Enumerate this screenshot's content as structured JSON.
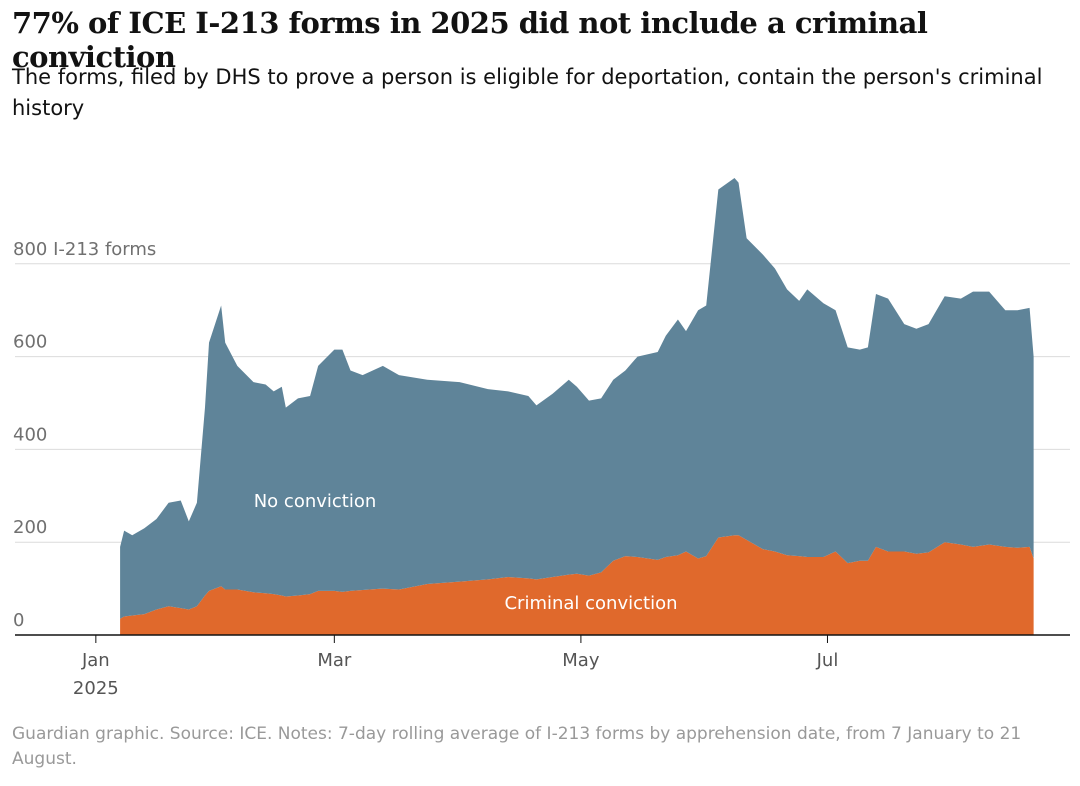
{
  "chart_data": {
    "type": "stacked_area",
    "title": "77% of ICE I-213 forms in 2025 did not include a criminal conviction",
    "subtitle": "The forms, filed by DHS to prove a person is eligible for deportation, contain the person's criminal history",
    "footer": "Guardian graphic. Source: ICE. Notes: 7-day rolling average of I-213 forms by apprehension date, from 7 January to 21 August.",
    "x": [
      6,
      7,
      9,
      12,
      15,
      18,
      21,
      23,
      25,
      27,
      28,
      31,
      32,
      35,
      39,
      42,
      44,
      46,
      47,
      50,
      53,
      55,
      59,
      61,
      63,
      66,
      71,
      75,
      82,
      90,
      97,
      102,
      107,
      109,
      113,
      117,
      119,
      122,
      125,
      128,
      131,
      134,
      139,
      141,
      144,
      146,
      149,
      151,
      154,
      158,
      159,
      161,
      165,
      168,
      171,
      174,
      176,
      180,
      183,
      186,
      189,
      191,
      193,
      196,
      200,
      203,
      206,
      210,
      214,
      217,
      221,
      225,
      228,
      231,
      232
    ],
    "xlim": [
      -20,
      241
    ],
    "xticks": [
      {
        "value": 0,
        "label": "Jan 2025"
      },
      {
        "value": 59,
        "label": "Mar"
      },
      {
        "value": 120,
        "label": "May"
      },
      {
        "value": 181,
        "label": "Jul"
      }
    ],
    "ylim": [
      0,
      1000
    ],
    "yticks": [
      0,
      200,
      400,
      600,
      {
        "value": 800,
        "label": "800 I-213 forms"
      }
    ],
    "grid": true,
    "series": [
      {
        "name": "Criminal conviction",
        "color": "#e0692c",
        "values": [
          35,
          40,
          42,
          45,
          55,
          62,
          58,
          55,
          62,
          85,
          95,
          105,
          98,
          98,
          92,
          90,
          88,
          85,
          83,
          85,
          88,
          95,
          95,
          93,
          95,
          97,
          100,
          98,
          110,
          115,
          120,
          125,
          122,
          120,
          125,
          130,
          132,
          128,
          135,
          160,
          170,
          168,
          162,
          168,
          172,
          180,
          165,
          170,
          210,
          215,
          215,
          205,
          185,
          180,
          172,
          170,
          168,
          168,
          180,
          155,
          160,
          160,
          190,
          180,
          180,
          175,
          178,
          200,
          195,
          190,
          195,
          190,
          188,
          190,
          165
        ]
      },
      {
        "name": "No conviction",
        "color": "#5f8499",
        "values": [
          155,
          185,
          173,
          185,
          195,
          223,
          232,
          190,
          223,
          405,
          535,
          605,
          532,
          482,
          453,
          450,
          437,
          450,
          407,
          425,
          427,
          485,
          520,
          522,
          475,
          463,
          480,
          462,
          440,
          430,
          410,
          400,
          393,
          375,
          395,
          420,
          403,
          377,
          375,
          390,
          400,
          432,
          448,
          477,
          508,
          475,
          535,
          540,
          750,
          770,
          760,
          650,
          635,
          610,
          573,
          550,
          577,
          547,
          520,
          465,
          455,
          460,
          545,
          545,
          490,
          485,
          492,
          530,
          530,
          550,
          545,
          510,
          512,
          515,
          435
        ]
      }
    ]
  }
}
